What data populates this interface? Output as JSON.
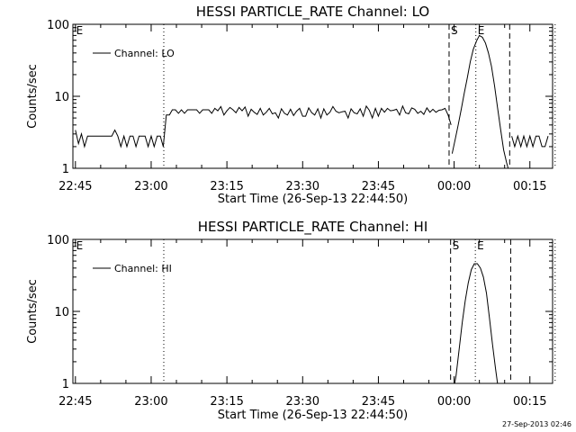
{
  "footer": {
    "timestamp": "27-Sep-2013 02:46"
  },
  "chart_data": [
    {
      "type": "line",
      "title": "HESSI PARTICLE_RATE Channel: LO",
      "xlabel": "Start Time (26-Sep-13 22:44:50)",
      "ylabel": "Counts/sec",
      "yscale": "log",
      "ylim": [
        1,
        100
      ],
      "xlim_minutes": [
        -0.5,
        94.5
      ],
      "x_ticks": [
        "22:45",
        "23:00",
        "23:15",
        "23:30",
        "23:45",
        "00:00",
        "00:15"
      ],
      "x_tick_minutes": [
        0,
        15,
        30,
        45,
        60,
        75,
        90
      ],
      "y_ticks": [
        "1",
        "10",
        "100"
      ],
      "y_tick_values": [
        1,
        10,
        100
      ],
      "legend": {
        "label": "Channel: LO",
        "position": "top-left"
      },
      "markers": [
        {
          "label": "E",
          "minute": -0.2,
          "style": "none"
        },
        {
          "label": "",
          "minute": 17.5,
          "style": "dotted"
        },
        {
          "label": "S",
          "minute": 74.0,
          "style": "dashed"
        },
        {
          "label": "E",
          "minute": 79.3,
          "style": "dotted"
        },
        {
          "label": "",
          "minute": 86.0,
          "style": "dashed"
        },
        {
          "label": "",
          "minute": 95.0,
          "style": "dotted"
        }
      ],
      "series": [
        {
          "name": "Channel: LO",
          "x": [
            0,
            0.6,
            1.2,
            1.8,
            2.4,
            3.0,
            3.6,
            4.2,
            4.8,
            5.4,
            6.0,
            6.6,
            7.2,
            7.8,
            8.4,
            9.0,
            9.6,
            10.2,
            10.8,
            11.4,
            12.0,
            12.6,
            13.2,
            13.8,
            14.4,
            15.0,
            15.6,
            16.2,
            16.8,
            17.4,
            18.0,
            18.6,
            19.2,
            19.8,
            20.4,
            21.0,
            21.6,
            22.2,
            22.8,
            23.4,
            24.0,
            24.6,
            25.2,
            25.8,
            26.4,
            27.0,
            27.6,
            28.2,
            28.8,
            29.4,
            30.0,
            30.6,
            31.2,
            31.8,
            32.4,
            33.0,
            33.6,
            34.2,
            34.8,
            35.4,
            36.0,
            36.6,
            37.2,
            37.8,
            38.4,
            39.0,
            39.6,
            40.2,
            40.8,
            41.4,
            42.0,
            42.6,
            43.2,
            43.8,
            44.4,
            45.0,
            45.6,
            46.2,
            46.8,
            47.4,
            48.0,
            48.6,
            49.2,
            49.8,
            50.4,
            51.0,
            51.6,
            52.2,
            52.8,
            53.4,
            54.0,
            54.6,
            55.2,
            55.8,
            56.4,
            57.0,
            57.6,
            58.2,
            58.8,
            59.4,
            60.0,
            60.6,
            61.2,
            61.8,
            62.4,
            63.0,
            63.6,
            64.2,
            64.8,
            65.4,
            66.0,
            66.6,
            67.2,
            67.8,
            68.4,
            69.0,
            69.6,
            70.2,
            70.8,
            71.4,
            72.0,
            72.6,
            73.2,
            73.8,
            74.4
          ],
          "y": [
            3.4,
            2.2,
            3.0,
            2.0,
            2.8,
            2.8,
            2.8,
            2.8,
            2.8,
            2.8,
            2.8,
            2.8,
            2.8,
            3.4,
            2.8,
            2.0,
            2.8,
            2.0,
            2.8,
            2.8,
            2.0,
            2.8,
            2.8,
            2.8,
            2.0,
            2.8,
            2.0,
            2.8,
            2.8,
            2.0,
            5.5,
            5.5,
            6.5,
            6.5,
            5.8,
            6.5,
            5.8,
            6.5,
            6.5,
            6.5,
            6.5,
            5.8,
            6.5,
            6.5,
            6.5,
            5.8,
            6.8,
            6.3,
            7.2,
            5.5,
            6.3,
            7.0,
            6.5,
            5.9,
            7.0,
            6.3,
            7.1,
            5.3,
            6.6,
            6.0,
            5.6,
            6.8,
            5.5,
            6.0,
            6.8,
            5.7,
            5.9,
            5.0,
            6.7,
            5.8,
            5.5,
            6.6,
            5.4,
            6.2,
            6.8,
            5.3,
            5.3,
            6.9,
            5.9,
            5.5,
            6.7,
            5.0,
            6.7,
            5.5,
            6.0,
            7.2,
            6.2,
            5.9,
            6.1,
            6.2,
            5.0,
            6.7,
            5.9,
            5.7,
            6.7,
            5.3,
            7.3,
            6.4,
            5.0,
            6.8,
            5.3,
            6.8,
            6.0,
            6.8,
            6.3,
            6.4,
            6.6,
            5.5,
            7.3,
            5.9,
            5.7,
            6.9,
            6.6,
            5.8,
            6.2,
            5.6,
            6.9,
            6.0,
            6.6,
            6.0,
            6.4,
            6.5,
            6.8,
            5.5,
            4.0
          ]
        },
        {
          "name": "Channel: LO",
          "x": [
            74.6,
            75.2,
            75.8,
            76.4,
            77.0,
            77.6,
            78.2,
            78.8,
            79.4,
            80.0,
            80.6,
            81.2,
            81.8,
            82.4,
            83.0,
            83.6,
            84.2,
            84.8,
            85.4,
            85.7
          ],
          "y": [
            1.6,
            2.5,
            4.0,
            6.5,
            11,
            18,
            30,
            45,
            58,
            70,
            66,
            55,
            40,
            26,
            14,
            7,
            3.5,
            1.8,
            1.2,
            1.0
          ]
        },
        {
          "name": "Channel: LO",
          "x": [
            86.4,
            87.0,
            87.6,
            88.2,
            88.8,
            89.4,
            90.0,
            90.6,
            91.2,
            91.8,
            92.4,
            93.0,
            93.6
          ],
          "y": [
            2.8,
            2.0,
            2.8,
            2.0,
            2.8,
            2.0,
            2.8,
            2.0,
            2.8,
            2.8,
            2.0,
            2.0,
            2.8
          ]
        }
      ]
    },
    {
      "type": "line",
      "title": "HESSI PARTICLE_RATE Channel: HI",
      "xlabel": "Start Time (26-Sep-13 22:44:50)",
      "ylabel": "Counts/sec",
      "yscale": "log",
      "ylim": [
        1,
        100
      ],
      "xlim_minutes": [
        -0.5,
        94.5
      ],
      "x_ticks": [
        "22:45",
        "23:00",
        "23:15",
        "23:30",
        "23:45",
        "00:00",
        "00:15"
      ],
      "x_tick_minutes": [
        0,
        15,
        30,
        45,
        60,
        75,
        90
      ],
      "y_ticks": [
        "1",
        "10",
        "100"
      ],
      "y_tick_values": [
        1,
        10,
        100
      ],
      "legend": {
        "label": "Channel: HI",
        "position": "top-left"
      },
      "markers": [
        {
          "label": "E",
          "minute": -0.2,
          "style": "none"
        },
        {
          "label": "",
          "minute": 17.5,
          "style": "dotted"
        },
        {
          "label": "S",
          "minute": 74.3,
          "style": "dashed"
        },
        {
          "label": "E",
          "minute": 79.2,
          "style": "dotted"
        },
        {
          "label": "",
          "minute": 86.2,
          "style": "dashed"
        },
        {
          "label": "",
          "minute": 95.0,
          "style": "dotted"
        }
      ],
      "series": [
        {
          "name": "Channel: HI",
          "x": [
            75.1,
            75.4,
            76.0,
            76.6,
            77.2,
            77.8,
            78.4,
            79.0,
            79.6,
            80.2,
            80.8,
            81.4,
            82.0,
            82.6,
            83.2,
            83.6
          ],
          "y": [
            1.0,
            1.3,
            3.0,
            7.0,
            14,
            25,
            38,
            46,
            46,
            40,
            30,
            18,
            8,
            3.5,
            1.6,
            1.0
          ]
        }
      ]
    }
  ]
}
